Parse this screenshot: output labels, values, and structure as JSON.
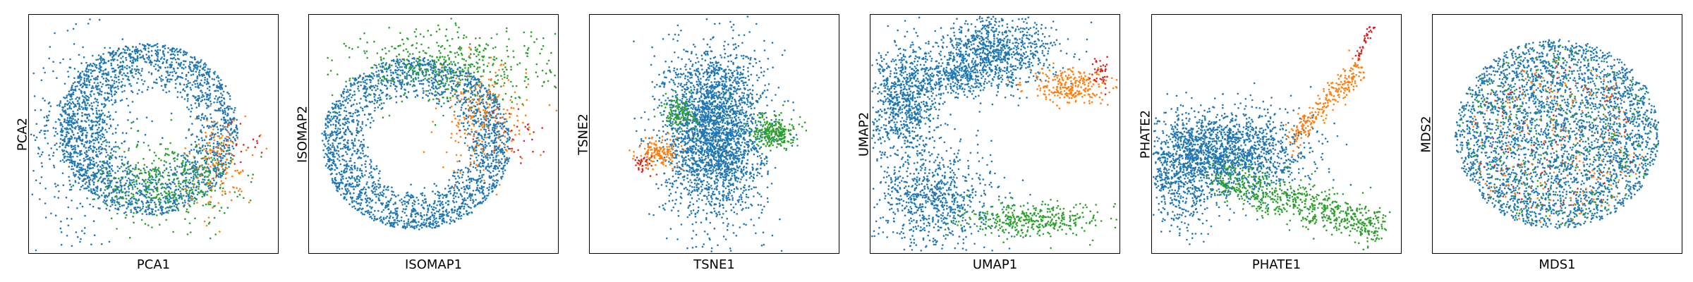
{
  "colors": {
    "blue": "#1f77b4",
    "orange": "#ff7f0e",
    "green": "#2ca02c",
    "red": "#d62728"
  },
  "chart_data": [
    {
      "type": "scatter",
      "title": "",
      "xlabel": "PCA1",
      "ylabel": "PCA2",
      "xlim": [
        0,
        10
      ],
      "ylim": [
        0,
        10
      ],
      "grid": false,
      "legend": "none",
      "clusters": [
        {
          "color": "blue",
          "shape": "ring",
          "cx": 4.8,
          "cy": 5.2,
          "r1": 1.5,
          "r2": 3.6,
          "ry": 1.0,
          "n": 2200
        },
        {
          "color": "blue",
          "shape": "blob",
          "cx": 2.2,
          "cy": 5.0,
          "sx": 1.1,
          "sy": 2.0,
          "n": 500
        },
        {
          "color": "green",
          "shape": "blob",
          "cx": 5.6,
          "cy": 3.0,
          "sx": 1.3,
          "sy": 0.9,
          "n": 380
        },
        {
          "color": "orange",
          "shape": "blob",
          "cx": 7.6,
          "cy": 3.8,
          "sx": 0.7,
          "sy": 1.0,
          "n": 140
        },
        {
          "color": "red",
          "shape": "blob",
          "cx": 8.6,
          "cy": 4.6,
          "sx": 0.5,
          "sy": 0.5,
          "n": 20
        }
      ]
    },
    {
      "type": "scatter",
      "title": "",
      "xlabel": "ISOMAP1",
      "ylabel": "ISOMAP2",
      "xlim": [
        0,
        10
      ],
      "ylim": [
        0,
        10
      ],
      "grid": false,
      "legend": "none",
      "clusters": [
        {
          "color": "blue",
          "shape": "ring",
          "cx": 4.3,
          "cy": 4.6,
          "r1": 1.8,
          "r2": 3.8,
          "ry": 0.95,
          "n": 2400
        },
        {
          "color": "green",
          "shape": "blob",
          "cx": 5.8,
          "cy": 7.9,
          "sx": 2.0,
          "sy": 0.8,
          "n": 450
        },
        {
          "color": "orange",
          "shape": "blob",
          "cx": 7.0,
          "cy": 5.6,
          "sx": 0.9,
          "sy": 1.1,
          "n": 220
        },
        {
          "color": "red",
          "shape": "blob",
          "cx": 8.2,
          "cy": 5.0,
          "sx": 0.7,
          "sy": 0.6,
          "n": 30
        }
      ]
    },
    {
      "type": "scatter",
      "title": "",
      "xlabel": "TSNE1",
      "ylabel": "TSNE2",
      "xlim": [
        0,
        10
      ],
      "ylim": [
        0,
        10
      ],
      "grid": false,
      "legend": "none",
      "clusters": [
        {
          "color": "blue",
          "shape": "blob",
          "cx": 5.0,
          "cy": 5.1,
          "sx": 1.0,
          "sy": 1.75,
          "n": 2800
        },
        {
          "color": "green",
          "shape": "blob",
          "cx": 7.4,
          "cy": 5.1,
          "sx": 0.4,
          "sy": 0.35,
          "n": 260
        },
        {
          "color": "green",
          "shape": "blob",
          "cx": 3.6,
          "cy": 5.9,
          "sx": 0.35,
          "sy": 0.35,
          "n": 120
        },
        {
          "color": "orange",
          "shape": "blob",
          "cx": 2.8,
          "cy": 4.2,
          "sx": 0.45,
          "sy": 0.3,
          "n": 160
        },
        {
          "color": "red",
          "shape": "blob",
          "cx": 2.2,
          "cy": 3.8,
          "sx": 0.2,
          "sy": 0.2,
          "n": 30
        }
      ]
    },
    {
      "type": "scatter",
      "title": "",
      "xlabel": "UMAP1",
      "ylabel": "UMAP2",
      "xlim": [
        0,
        10
      ],
      "ylim": [
        0,
        10
      ],
      "grid": false,
      "legend": "none",
      "clusters": [
        {
          "color": "blue",
          "shape": "blob",
          "cx": 5.0,
          "cy": 8.4,
          "sx": 1.2,
          "sy": 0.75,
          "n": 900
        },
        {
          "color": "blue",
          "shape": "blob",
          "cx": 1.4,
          "cy": 6.3,
          "sx": 0.7,
          "sy": 1.1,
          "n": 800
        },
        {
          "color": "blue",
          "shape": "blob",
          "cx": 2.6,
          "cy": 2.3,
          "sx": 1.2,
          "sy": 1.1,
          "n": 800
        },
        {
          "color": "blue",
          "shape": "blob",
          "cx": 3.2,
          "cy": 7.4,
          "sx": 0.9,
          "sy": 0.4,
          "n": 300
        },
        {
          "color": "green",
          "shape": "blob",
          "cx": 6.6,
          "cy": 1.4,
          "sx": 1.4,
          "sy": 0.35,
          "n": 380
        },
        {
          "color": "orange",
          "shape": "blob",
          "cx": 8.0,
          "cy": 7.0,
          "sx": 0.85,
          "sy": 0.35,
          "n": 260
        },
        {
          "color": "red",
          "shape": "blob",
          "cx": 9.2,
          "cy": 7.6,
          "sx": 0.2,
          "sy": 0.3,
          "n": 40
        }
      ]
    },
    {
      "type": "scatter",
      "title": "",
      "xlabel": "PHATE1",
      "ylabel": "PHATE2",
      "xlim": [
        0,
        10
      ],
      "ylim": [
        0,
        10
      ],
      "grid": false,
      "legend": "none",
      "clusters": [
        {
          "color": "blue",
          "shape": "blob",
          "cx": 3.0,
          "cy": 4.2,
          "sx": 1.6,
          "sy": 0.9,
          "n": 1600
        },
        {
          "color": "blue",
          "shape": "blob",
          "cx": 1.2,
          "cy": 3.2,
          "sx": 0.8,
          "sy": 1.2,
          "n": 600
        },
        {
          "color": "green",
          "shape": "streak",
          "x0": 2.5,
          "y0": 3.2,
          "x1": 9.2,
          "y1": 1.1,
          "spread": 0.45,
          "n": 700
        },
        {
          "color": "orange",
          "shape": "streak",
          "x0": 5.6,
          "y0": 4.8,
          "x1": 8.4,
          "y1": 7.8,
          "spread": 0.3,
          "n": 260
        },
        {
          "color": "red",
          "shape": "streak",
          "x0": 8.2,
          "y0": 8.2,
          "x1": 8.9,
          "y1": 9.6,
          "spread": 0.12,
          "n": 40
        }
      ]
    },
    {
      "type": "scatter",
      "title": "",
      "xlabel": "MDS1",
      "ylabel": "MDS2",
      "xlim": [
        0,
        10
      ],
      "ylim": [
        0,
        10
      ],
      "grid": false,
      "legend": "none",
      "clusters": [
        {
          "color": "blue",
          "shape": "disk",
          "cx": 5.0,
          "cy": 5.0,
          "r": 4.1,
          "ry": 0.97,
          "n": 3200
        },
        {
          "color": "green",
          "shape": "disk",
          "cx": 5.0,
          "cy": 5.0,
          "r": 4.0,
          "ry": 0.97,
          "n": 350
        },
        {
          "color": "orange",
          "shape": "disk",
          "cx": 5.0,
          "cy": 4.6,
          "r": 3.6,
          "ry": 0.97,
          "n": 200
        },
        {
          "color": "red",
          "shape": "disk",
          "cx": 5.0,
          "cy": 4.6,
          "r": 3.4,
          "ry": 0.97,
          "n": 80
        }
      ]
    }
  ]
}
